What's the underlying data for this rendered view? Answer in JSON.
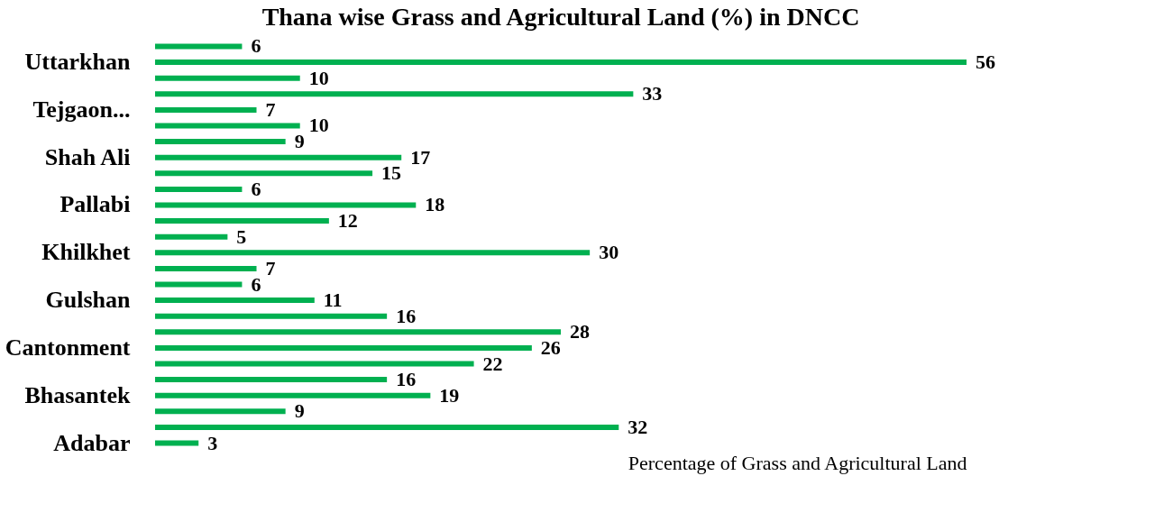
{
  "chart_data": {
    "type": "bar",
    "orientation": "horizontal",
    "title": "Thana wise Grass and Agricultural Land (%) in DNCC",
    "xlabel": "Percentage of Grass and Agricultural Land",
    "categories": [
      null,
      "Uttarkhan",
      null,
      null,
      "Tejgaon...",
      null,
      null,
      "Shah Ali",
      null,
      null,
      "Pallabi",
      null,
      null,
      "Khilkhet",
      null,
      null,
      "Gulshan",
      null,
      null,
      "Cantonment",
      null,
      null,
      "Bhasantek",
      null,
      null,
      "Adabar"
    ],
    "values": [
      6,
      56,
      10,
      33,
      7,
      10,
      9,
      17,
      15,
      6,
      18,
      12,
      5,
      30,
      7,
      6,
      11,
      16,
      28,
      26,
      22,
      16,
      19,
      9,
      32,
      3
    ],
    "color": "#00b050",
    "data_labels": true,
    "grid": false
  }
}
